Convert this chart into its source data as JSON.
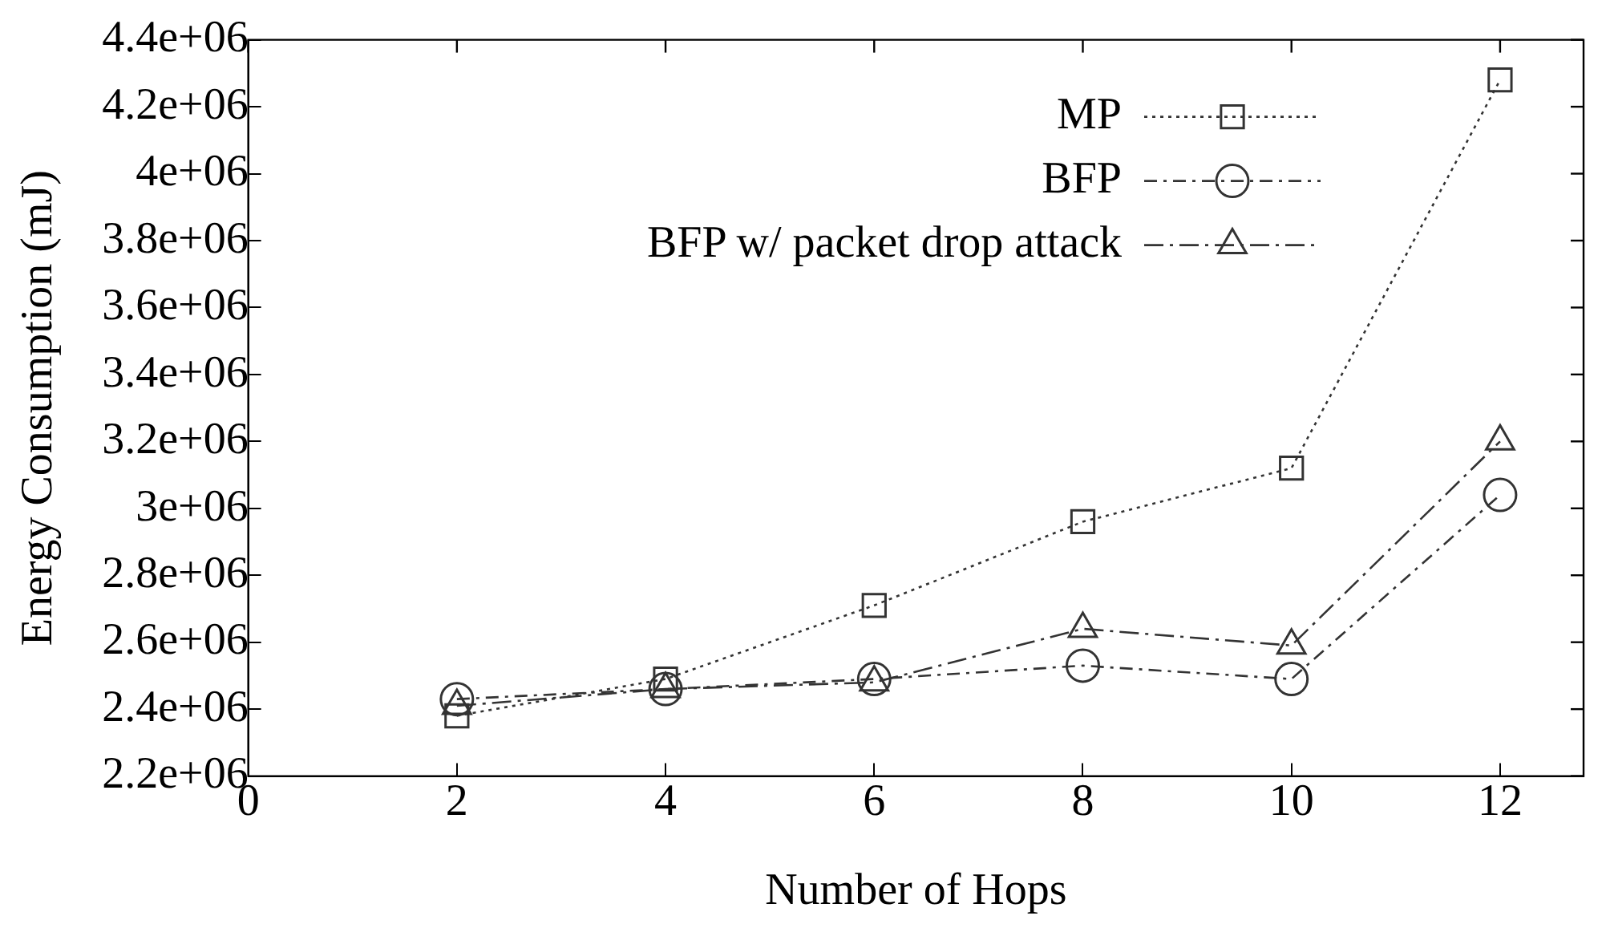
{
  "chart_data": {
    "type": "line",
    "xlabel": "Number of Hops",
    "ylabel": "Energy Consumption (mJ)",
    "x": [
      2,
      4,
      6,
      8,
      10,
      12
    ],
    "series": [
      {
        "name": "MP",
        "color": "#333333",
        "values": [
          2380000,
          2490000,
          2710000,
          2960000,
          3120000,
          4280000
        ],
        "marker": "square",
        "line_style": "dotted"
      },
      {
        "name": "BFP",
        "color": "#333333",
        "values": [
          2430000,
          2460000,
          2490000,
          2530000,
          2490000,
          3040000
        ],
        "marker": "circle",
        "line_style": "dashed"
      },
      {
        "name": "BFP w/ packet drop attack",
        "color": "#333333",
        "values": [
          2410000,
          2460000,
          2480000,
          2640000,
          2590000,
          3200000
        ],
        "marker": "triangle",
        "line_style": "dashdot"
      }
    ],
    "xlim": [
      0,
      12.8
    ],
    "xticks": [
      0,
      2,
      4,
      6,
      8,
      10,
      12
    ],
    "ylim": [
      2200000,
      4400000
    ],
    "yticks": [
      {
        "value": 2200000,
        "label": "2.2e+06"
      },
      {
        "value": 2400000,
        "label": "2.4e+06"
      },
      {
        "value": 2600000,
        "label": "2.6e+06"
      },
      {
        "value": 2800000,
        "label": "2.8e+06"
      },
      {
        "value": 3000000,
        "label": "3e+06"
      },
      {
        "value": 3200000,
        "label": "3.2e+06"
      },
      {
        "value": 3400000,
        "label": "3.4e+06"
      },
      {
        "value": 3600000,
        "label": "3.6e+06"
      },
      {
        "value": 3800000,
        "label": "3.8e+06"
      },
      {
        "value": 4000000,
        "label": "4e+06"
      },
      {
        "value": 4200000,
        "label": "4.2e+06"
      },
      {
        "value": 4400000,
        "label": "4.4e+06"
      }
    ],
    "grid": false,
    "legend": "top right"
  }
}
